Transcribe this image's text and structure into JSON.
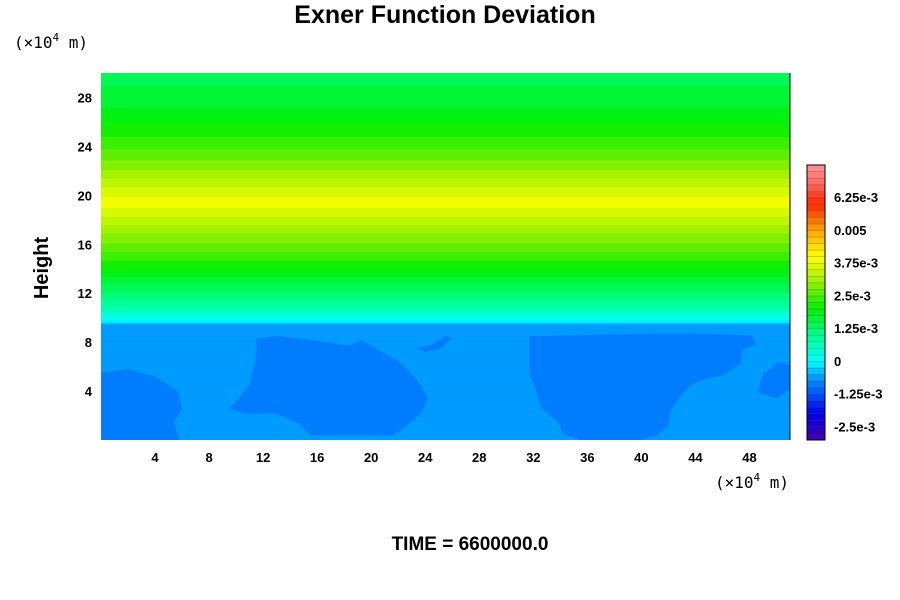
{
  "chart_data": {
    "type": "heatmap",
    "title": "Exner Function Deviation",
    "ylabel": "Height",
    "xlabel": "",
    "x_unit": {
      "prefix": "(×10",
      "exponent": "4",
      "suffix": " m)"
    },
    "y_unit": {
      "prefix": "(×10",
      "exponent": "4",
      "suffix": " m)"
    },
    "xlim": [
      0,
      51
    ],
    "ylim": [
      0,
      30
    ],
    "x_ticks": [
      4,
      8,
      12,
      16,
      20,
      24,
      28,
      32,
      36,
      40,
      44,
      48
    ],
    "y_ticks": [
      4,
      8,
      12,
      16,
      20,
      24,
      28
    ],
    "x_tick_labels": [
      "4",
      "8",
      "12",
      "16",
      "20",
      "24",
      "28",
      "32",
      "36",
      "40",
      "44",
      "48"
    ],
    "y_tick_labels": [
      "4",
      "8",
      "12",
      "16",
      "20",
      "24",
      "28"
    ],
    "vertical_profile": [
      {
        "y": 0,
        "value": -0.0006
      },
      {
        "y": 9.5,
        "value": -0.0006
      },
      {
        "y": 9.6,
        "value": -0.0001
      },
      {
        "y": 10.2,
        "value": 0.0003
      },
      {
        "y": 11,
        "value": 0.0008
      },
      {
        "y": 12.5,
        "value": 0.0014
      },
      {
        "y": 14,
        "value": 0.002
      },
      {
        "y": 16,
        "value": 0.0027
      },
      {
        "y": 18,
        "value": 0.0034
      },
      {
        "y": 19.5,
        "value": 0.0039
      },
      {
        "y": 21,
        "value": 0.0034
      },
      {
        "y": 23,
        "value": 0.0027
      },
      {
        "y": 25,
        "value": 0.0022
      },
      {
        "y": 26,
        "value": 0.002
      },
      {
        "y": 28,
        "value": 0.0016
      },
      {
        "y": 30,
        "value": 0.0014
      }
    ],
    "lower_regions_value": -0.00085,
    "colorbar": {
      "min": -0.003,
      "max": 0.0075,
      "levels": 42,
      "tick_labels": [
        "6.25e-3",
        "0.005",
        "3.75e-3",
        "2.5e-3",
        "1.25e-3",
        "0",
        "-1.25e-3",
        "-2.5e-3"
      ],
      "tick_values": [
        0.00625,
        0.005,
        0.00375,
        0.0025,
        0.00125,
        0,
        -0.00125,
        -0.0025
      ]
    },
    "time_label": "TIME = 6600000.0"
  }
}
